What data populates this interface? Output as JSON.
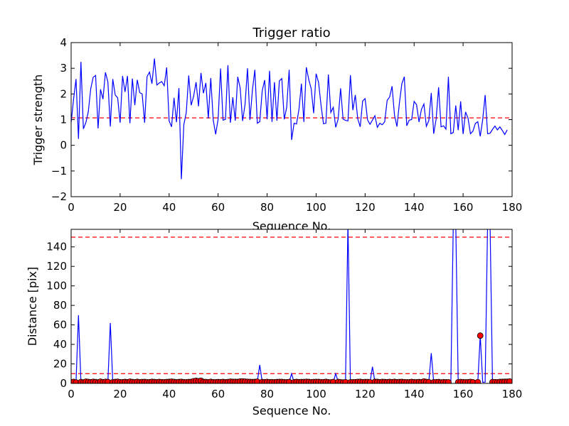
{
  "chart_data": [
    {
      "type": "line",
      "title": "Trigger ratio",
      "xlabel": "Sequence No.",
      "ylabel": "Trigger strength",
      "xlim": [
        0,
        180
      ],
      "ylim": [
        -2,
        4
      ],
      "xticks": [
        "0",
        "20",
        "40",
        "60",
        "80",
        "100",
        "120",
        "140",
        "160",
        "180"
      ],
      "yticks": [
        "−2",
        "−1",
        "0",
        "1",
        "2",
        "3",
        "4"
      ],
      "grid": false,
      "colors": {
        "line": "#0000ff",
        "threshold": "#ff0000"
      },
      "threshold": 1.07,
      "series": [
        {
          "values": [
            0.88,
            1.8,
            2.58,
            0.25,
            3.25,
            0.64,
            0.88,
            1.3,
            2.2,
            2.65,
            2.72,
            0.66,
            2.18,
            1.8,
            2.84,
            2.47,
            0.73,
            2.58,
            1.96,
            1.85,
            0.88,
            2.7,
            2.08,
            2.7,
            0.86,
            2.6,
            1.56,
            2.55,
            2.05,
            2.0,
            0.88,
            2.68,
            2.85,
            2.4,
            3.38,
            2.35,
            2.43,
            2.48,
            2.32,
            3.03,
            0.95,
            0.72,
            1.85,
            0.9,
            2.23,
            -1.32,
            0.8,
            1.28,
            2.72,
            1.56,
            1.91,
            2.46,
            1.52,
            2.82,
            2.03,
            2.43,
            1.05,
            2.62,
            0.99,
            0.43,
            1.02,
            2.99,
            0.98,
            1.01,
            3.12,
            0.88,
            1.87,
            0.96,
            2.67,
            2.23,
            0.95,
            1.6,
            3.0,
            0.99,
            2.15,
            2.94,
            0.86,
            0.92,
            2.12,
            2.54,
            1.01,
            2.9,
            0.91,
            2.46,
            0.96,
            2.51,
            2.6,
            1.01,
            1.49,
            2.94,
            0.21,
            0.86,
            0.83,
            1.4,
            2.4,
            0.91,
            3.04,
            2.56,
            2.2,
            1.25,
            2.79,
            2.45,
            1.57,
            0.84,
            0.86,
            2.76,
            1.28,
            1.48,
            0.7,
            1.02,
            2.22,
            1.02,
            0.97,
            0.95,
            2.73,
            1.37,
            1.96,
            1.03,
            0.72,
            1.73,
            1.82,
            0.99,
            0.82,
            0.98,
            1.15,
            0.7,
            0.86,
            0.8,
            0.92,
            1.75,
            1.88,
            2.3,
            1.17,
            0.73,
            1.65,
            2.4,
            2.67,
            0.76,
            0.98,
            1.0,
            1.71,
            1.58,
            0.91,
            1.4,
            1.61,
            0.74,
            0.96,
            2.04,
            0.45,
            1.03,
            2.26,
            0.72,
            0.76,
            0.63,
            2.67,
            0.45,
            0.5,
            1.55,
            0.59,
            1.71,
            0.44,
            1.3,
            1.06,
            0.45,
            0.55,
            0.85,
            0.92,
            0.35,
            1.0,
            1.96,
            0.45,
            0.47,
            0.62,
            0.75,
            0.6,
            0.72,
            0.58,
            0.42,
            0.6
          ]
        }
      ]
    },
    {
      "type": "line",
      "title": "",
      "xlabel": "Sequence No.",
      "ylabel": "Distance [pix]",
      "xlim": [
        0,
        180
      ],
      "ylim": [
        0,
        158
      ],
      "xticks": [
        "0",
        "20",
        "40",
        "60",
        "80",
        "100",
        "120",
        "140",
        "160",
        "180"
      ],
      "yticks": [
        "0",
        "20",
        "40",
        "60",
        "80",
        "100",
        "120",
        "140"
      ],
      "grid": false,
      "colors": {
        "line": "#0000ff",
        "threshold": "#ff0000",
        "marker": "#ff0000"
      },
      "thresholds": [
        10,
        150
      ],
      "series": [
        {
          "values": [
            1.2,
            1.5,
            1.0,
            70,
            1.4,
            1.0,
            1.8,
            1.5,
            1.2,
            1.6,
            1.4,
            1.0,
            1.8,
            1.3,
            1.6,
            1.5,
            62,
            1.2,
            1.5,
            1.7,
            1.2,
            1.3,
            1.5,
            1.2,
            1.8,
            1.4,
            1.2,
            1.6,
            1.2,
            1.4,
            1.5,
            1.2,
            1.3,
            1.6,
            1.4,
            1.2,
            1.5,
            1.3,
            1.2,
            1.4,
            1.6,
            1.8,
            1.5,
            1.2,
            1.4,
            1.6,
            1.3,
            1.2,
            1.4,
            1.5,
            2.3,
            2.6,
            2.3,
            2.7,
            1.5,
            1.4,
            1.2,
            1.6,
            1.3,
            1.2,
            1.4,
            1.3,
            1.5,
            1.2,
            1.4,
            1.8,
            1.6,
            1.6,
            1.5,
            2.0,
            2.1,
            1.8,
            1.6,
            1.5,
            1.4,
            1.5,
            1.8,
            19,
            1.4,
            1.2,
            1.5,
            1.2,
            1.3,
            1.2,
            1.4,
            1.5,
            1.5,
            1.3,
            1.2,
            1.4,
            10,
            1.2,
            1.5,
            1.3,
            1.4,
            1.4,
            1.6,
            1.5,
            1.2,
            1.4,
            1.5,
            1.5,
            1.3,
            1.3,
            1.6,
            1.2,
            1.1,
            1.4,
            10,
            1.5,
            1.2,
            1.0,
            1.3,
            165,
            1.2,
            1.2,
            1.3,
            1.5,
            1.6,
            1.3,
            1.4,
            1.4,
            1.2,
            17,
            1.6,
            1.5,
            1.2,
            1.5,
            1.4,
            1.3,
            1.5,
            1.3,
            1.6,
            1.2,
            1.4,
            1.5,
            1.3,
            1.2,
            1.2,
            1.5,
            1.3,
            1.2,
            1.4,
            1.2,
            2.0,
            1.5,
            1.3,
            31,
            1.2,
            1.3,
            1.4,
            1.0,
            1.3,
            1.2,
            1.2,
            1.2,
            165,
            165,
            1.2,
            1.4,
            1.3,
            1.2,
            1.3,
            1.5,
            1.2,
            1.3,
            1.3,
            49,
            1.2,
            1.3,
            165,
            165,
            1.4,
            1.3,
            1.2,
            1.5,
            1.6,
            1.7,
            1.7,
            2.0,
            2.2
          ],
          "marker_indices": [
            0,
            1,
            2,
            4,
            5,
            6,
            7,
            8,
            9,
            10,
            11,
            12,
            13,
            14,
            15,
            17,
            18,
            19,
            20,
            21,
            22,
            23,
            24,
            25,
            26,
            27,
            28,
            29,
            30,
            31,
            32,
            33,
            34,
            35,
            36,
            37,
            38,
            39,
            40,
            41,
            42,
            43,
            44,
            45,
            46,
            47,
            48,
            49,
            50,
            51,
            52,
            53,
            54,
            55,
            56,
            57,
            58,
            59,
            60,
            61,
            62,
            63,
            64,
            65,
            66,
            67,
            68,
            69,
            70,
            71,
            72,
            73,
            74,
            75,
            76,
            78,
            79,
            80,
            81,
            82,
            83,
            84,
            85,
            86,
            87,
            88,
            89,
            91,
            92,
            93,
            94,
            95,
            96,
            97,
            98,
            99,
            100,
            101,
            102,
            103,
            104,
            105,
            106,
            107,
            109,
            110,
            111,
            112,
            114,
            115,
            116,
            117,
            118,
            119,
            120,
            121,
            122,
            124,
            125,
            126,
            127,
            128,
            129,
            130,
            131,
            132,
            133,
            134,
            135,
            136,
            137,
            138,
            139,
            140,
            141,
            142,
            143,
            144,
            145,
            146,
            148,
            149,
            150,
            151,
            152,
            153,
            154,
            157,
            158,
            159,
            160,
            161,
            162,
            163,
            164,
            166,
            167,
            170,
            171,
            172,
            173,
            174,
            175,
            176,
            177,
            178,
            179
          ]
        }
      ]
    }
  ]
}
